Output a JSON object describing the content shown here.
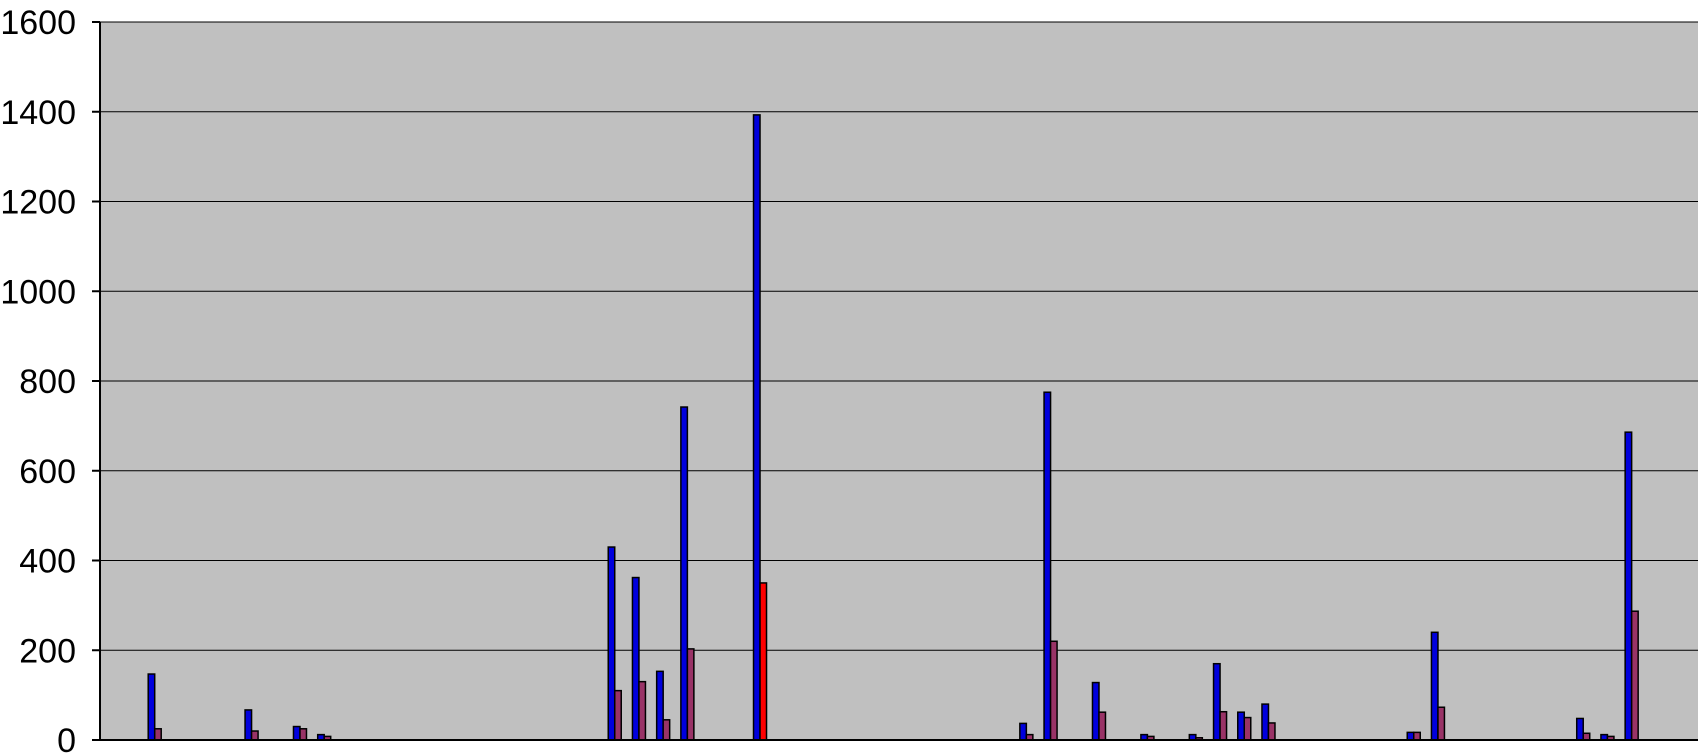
{
  "chart_data": {
    "type": "bar",
    "ylim": [
      0,
      1600
    ],
    "yticks": [
      "0",
      "200",
      "400",
      "600",
      "800",
      "1000",
      "1200",
      "1400",
      "1600"
    ],
    "grid": true,
    "legend": "none",
    "colors": {
      "plot_background": "#c0c0c0",
      "series_a": "#0000dd",
      "series_b": "#993366",
      "series_b_highlight": "#ff0000"
    },
    "num_categories": 66,
    "series": [
      {
        "values": [
          0,
          147,
          0,
          0,
          0,
          67,
          0,
          30,
          12,
          0,
          0,
          0,
          0,
          0,
          0,
          0,
          0,
          0,
          0,
          0,
          430,
          362,
          153,
          742,
          0,
          0,
          1393,
          0,
          0,
          0,
          0,
          0,
          0,
          0,
          0,
          0,
          0,
          37,
          775,
          0,
          128,
          0,
          12,
          0,
          12,
          170,
          62,
          80,
          0,
          0,
          0,
          0,
          0,
          17,
          240,
          0,
          0,
          0,
          0,
          0,
          48,
          12,
          686,
          0,
          0,
          0
        ]
      },
      {
        "values": [
          0,
          25,
          0,
          0,
          0,
          20,
          0,
          25,
          8,
          0,
          0,
          0,
          0,
          0,
          0,
          0,
          0,
          0,
          0,
          0,
          110,
          130,
          45,
          203,
          0,
          0,
          350,
          0,
          0,
          0,
          0,
          0,
          0,
          0,
          0,
          0,
          0,
          12,
          220,
          0,
          62,
          0,
          8,
          0,
          5,
          63,
          50,
          38,
          0,
          0,
          0,
          0,
          0,
          17,
          73,
          0,
          0,
          0,
          0,
          0,
          15,
          8,
          287,
          0,
          0,
          12
        ]
      }
    ],
    "highlight": {
      "series": 1,
      "index": 26
    }
  }
}
